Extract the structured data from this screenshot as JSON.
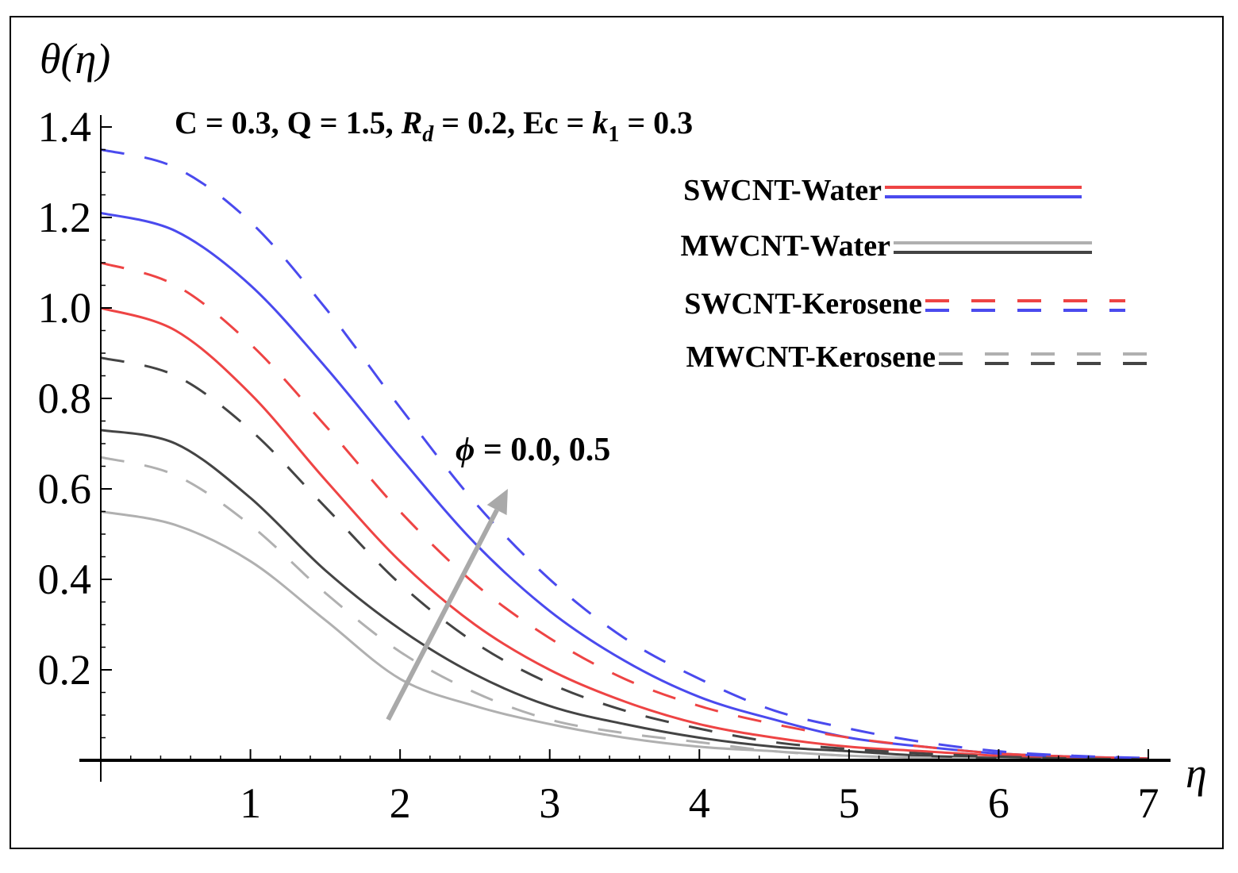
{
  "chart_data": {
    "type": "line",
    "ylabel": "θ(η)",
    "xlabel": "η",
    "xlim": [
      0,
      7
    ],
    "ylim": [
      0,
      1.4
    ],
    "x_ticks": [
      1,
      2,
      3,
      4,
      5,
      6,
      7
    ],
    "x_tick_labels": [
      "1",
      "2",
      "3",
      "4",
      "5",
      "6",
      "7"
    ],
    "y_ticks": [
      0.2,
      0.4,
      0.6,
      0.8,
      1.0,
      1.2,
      1.4
    ],
    "y_tick_labels": [
      "0.2",
      "0.4",
      "0.6",
      "0.8",
      "1.0",
      "1.2",
      "1.4"
    ],
    "parameters": {
      "prefix": "C = 0.3, Q = 1.5, ",
      "rd_symbol": "R",
      "rd_sub": "d",
      "rd_value": " = 0.2, Ec = ",
      "k_symbol": "k",
      "k_sub": "1",
      "k_value": " = 0.3"
    },
    "annotation": {
      "symbol": "ϕ",
      "text": " = 0.0, 0.5",
      "arrow_from": [
        1.92,
        0.09
      ],
      "arrow_to": [
        2.72,
        0.6
      ]
    },
    "legend": [
      {
        "label": "SWCNT-Water",
        "style": "solid",
        "colors": [
          "#ee4444",
          "#4a4aee"
        ]
      },
      {
        "label": "MWCNT-Water",
        "style": "solid",
        "colors": [
          "#b0b0b0",
          "#444444"
        ]
      },
      {
        "label": "SWCNT-Kerosene",
        "style": "dashed",
        "colors": [
          "#ee4444",
          "#4a4aee"
        ]
      },
      {
        "label": "MWCNT-Kerosene",
        "style": "dashed",
        "colors": [
          "#b0b0b0",
          "#444444"
        ]
      }
    ],
    "series": [
      {
        "name": "SWCNT-Water ϕ=0.0",
        "color": "#ee4444",
        "style": "solid",
        "x": [
          0,
          0.5,
          1.0,
          1.5,
          2.0,
          2.5,
          3.0,
          3.5,
          4.0,
          4.5,
          5.0,
          5.5,
          6.0,
          6.5,
          7.0
        ],
        "y": [
          1.0,
          0.95,
          0.81,
          0.62,
          0.44,
          0.3,
          0.2,
          0.13,
          0.08,
          0.05,
          0.03,
          0.02,
          0.01,
          0.005,
          0.002
        ]
      },
      {
        "name": "SWCNT-Water ϕ=0.5",
        "color": "#4a4aee",
        "style": "solid",
        "x": [
          0,
          0.5,
          1.0,
          1.5,
          2.0,
          2.5,
          3.0,
          3.5,
          4.0,
          4.5,
          5.0,
          5.5,
          6.0,
          6.5,
          7.0
        ],
        "y": [
          1.21,
          1.17,
          1.05,
          0.87,
          0.67,
          0.48,
          0.33,
          0.22,
          0.14,
          0.09,
          0.05,
          0.03,
          0.015,
          0.008,
          0.004
        ]
      },
      {
        "name": "MWCNT-Water ϕ=0.0",
        "color": "#b0b0b0",
        "style": "solid",
        "x": [
          0,
          0.5,
          1.0,
          1.5,
          2.0,
          2.5,
          3.0,
          3.5,
          4.0,
          4.5,
          5.0,
          5.5,
          6.0,
          6.5,
          7.0
        ],
        "y": [
          0.55,
          0.52,
          0.44,
          0.31,
          0.18,
          0.12,
          0.08,
          0.05,
          0.03,
          0.02,
          0.01,
          0.005,
          0.002,
          0.001,
          0.0
        ]
      },
      {
        "name": "MWCNT-Water ϕ=0.5",
        "color": "#444444",
        "style": "solid",
        "x": [
          0,
          0.5,
          1.0,
          1.5,
          2.0,
          2.5,
          3.0,
          3.5,
          4.0,
          4.5,
          5.0,
          5.5,
          6.0,
          6.5,
          7.0
        ],
        "y": [
          0.73,
          0.7,
          0.58,
          0.42,
          0.29,
          0.19,
          0.12,
          0.08,
          0.05,
          0.03,
          0.02,
          0.01,
          0.005,
          0.002,
          0.001
        ]
      },
      {
        "name": "SWCNT-Kerosene ϕ=0.0",
        "color": "#ee4444",
        "style": "dashed",
        "x": [
          0,
          0.5,
          1.0,
          1.5,
          2.0,
          2.5,
          3.0,
          3.5,
          4.0,
          4.5,
          5.0,
          5.5,
          6.0,
          6.5,
          7.0
        ],
        "y": [
          1.1,
          1.05,
          0.92,
          0.74,
          0.55,
          0.39,
          0.27,
          0.18,
          0.12,
          0.08,
          0.05,
          0.03,
          0.015,
          0.008,
          0.004
        ]
      },
      {
        "name": "SWCNT-Kerosene ϕ=0.5",
        "color": "#4a4aee",
        "style": "dashed",
        "x": [
          0,
          0.5,
          1.0,
          1.5,
          2.0,
          2.5,
          3.0,
          3.5,
          4.0,
          4.5,
          5.0,
          5.5,
          6.0,
          6.5,
          7.0
        ],
        "y": [
          1.35,
          1.31,
          1.19,
          1.0,
          0.78,
          0.57,
          0.4,
          0.27,
          0.18,
          0.11,
          0.07,
          0.04,
          0.02,
          0.01,
          0.005
        ]
      },
      {
        "name": "MWCNT-Kerosene ϕ=0.0",
        "color": "#b0b0b0",
        "style": "dashed",
        "x": [
          0,
          0.5,
          1.0,
          1.5,
          2.0,
          2.5,
          3.0,
          3.5,
          4.0,
          4.5,
          5.0,
          5.5,
          6.0,
          6.5,
          7.0
        ],
        "y": [
          0.67,
          0.63,
          0.52,
          0.37,
          0.24,
          0.15,
          0.09,
          0.06,
          0.04,
          0.02,
          0.01,
          0.006,
          0.003,
          0.001,
          0.0
        ]
      },
      {
        "name": "MWCNT-Kerosene ϕ=0.5",
        "color": "#444444",
        "style": "dashed",
        "x": [
          0,
          0.5,
          1.0,
          1.5,
          2.0,
          2.5,
          3.0,
          3.5,
          4.0,
          4.5,
          5.0,
          5.5,
          6.0,
          6.5,
          7.0
        ],
        "y": [
          0.89,
          0.85,
          0.73,
          0.56,
          0.39,
          0.26,
          0.17,
          0.11,
          0.07,
          0.04,
          0.025,
          0.015,
          0.008,
          0.004,
          0.002
        ]
      }
    ]
  }
}
